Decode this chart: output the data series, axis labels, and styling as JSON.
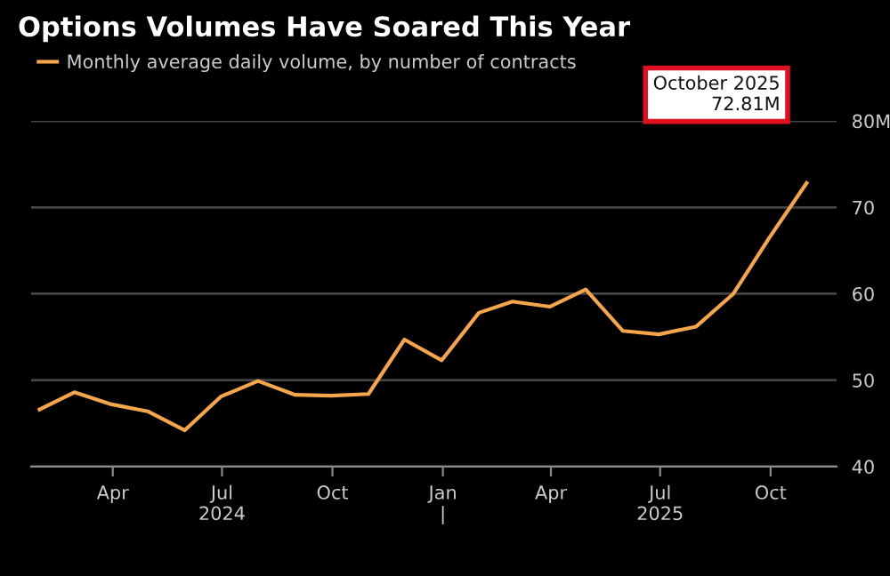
{
  "chart_data": {
    "type": "line",
    "title": "Options Volumes Have Soared This Year",
    "x": [
      "2024-01-31",
      "2024-02-29",
      "2024-03-31",
      "2024-04-30",
      "2024-05-31",
      "2024-06-30",
      "2024-07-31",
      "2024-08-31",
      "2024-09-30",
      "2024-10-31",
      "2024-11-30",
      "2024-12-31",
      "2025-01-31",
      "2025-02-28",
      "2025-03-31",
      "2025-04-30",
      "2025-05-31",
      "2025-06-30",
      "2025-07-31",
      "2025-08-31",
      "2025-09-30",
      "2025-10-31"
    ],
    "series": [
      {
        "name": "Monthly average daily volume, by number of contracts",
        "color": "#f5a54a",
        "values": [
          46.6,
          48.6,
          47.2,
          46.4,
          44.2,
          48.1,
          49.9,
          48.3,
          48.2,
          48.4,
          54.7,
          52.3,
          57.8,
          59.1,
          58.5,
          60.5,
          55.7,
          55.3,
          56.2,
          60.0,
          66.5,
          72.81
        ]
      }
    ],
    "xlim": [
      "2024-01-24",
      "2025-11-25"
    ],
    "xticks": [
      {
        "value": "2024-04-01",
        "label": "Apr"
      },
      {
        "value": "2024-07-01",
        "label": "Jul\n2024"
      },
      {
        "value": "2024-10-01",
        "label": "Oct"
      },
      {
        "value": "2025-01-01",
        "label": "Jan\n|"
      },
      {
        "value": "2025-04-01",
        "label": "Apr"
      },
      {
        "value": "2025-07-01",
        "label": "Jul\n2025"
      },
      {
        "value": "2025-10-01",
        "label": "Oct"
      }
    ],
    "ylim": [
      40,
      80
    ],
    "yticks": [
      40,
      50,
      60,
      70,
      {
        "value": 80,
        "label": "80M"
      }
    ],
    "annotations": [
      "October 2025\n72.81M"
    ],
    "grid": "y",
    "legend": "top left",
    "marker": "none",
    "line_style": "solid"
  }
}
